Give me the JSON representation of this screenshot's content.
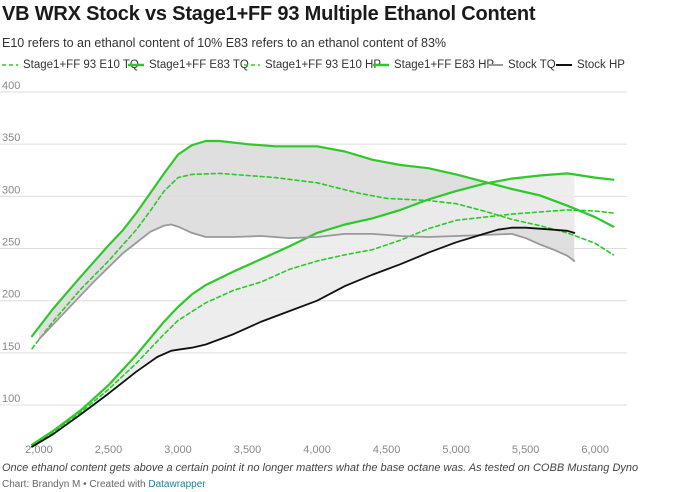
{
  "header": {
    "title": "VB WRX Stock vs Stage1+FF 93 Multiple Ethanol Content",
    "subtitle": "E10 refers to an ethanol content of 10% E83 refers to an ethanol content of 83%"
  },
  "footer": {
    "note": "Once ethanol content gets above a certain point it no longer matters what the base octane was. As tested on COBB Mustang Dyno",
    "credit_prefix": "Chart: Brandyn M • Created with ",
    "credit_link": "Datawrapper"
  },
  "colors": {
    "stage1": "#2ec82a",
    "stock_tq": "#999999",
    "stock_hp": "#111111",
    "band_tq": "#dcdcdc",
    "band_hp": "#ebebeb",
    "grid": "#dddddd",
    "tick": "#888888"
  },
  "chart_data": {
    "type": "line",
    "title": "VB WRX Stock vs Stage1+FF 93 Multiple Ethanol Content",
    "xlim": [
      1950,
      6200
    ],
    "ylim": [
      55,
      400
    ],
    "x_ticks": [
      2000,
      2500,
      3000,
      3500,
      4000,
      4500,
      5000,
      5500,
      6000
    ],
    "x_tick_labels": [
      "2,000",
      "2,500",
      "3,000",
      "3,500",
      "4,000",
      "4,500",
      "5,000",
      "5,500",
      "6,000"
    ],
    "y_ticks": [
      100,
      150,
      200,
      250,
      300,
      350,
      400
    ],
    "y_tick_labels": [
      "100",
      "150",
      "200",
      "250",
      "300",
      "350",
      "400"
    ],
    "grid": true,
    "legend": "top",
    "series": [
      {
        "name": "Stage1+FF 93 E10 TQ",
        "style": "dashed",
        "color": "#2ec82a",
        "x": [
          1950,
          2100,
          2300,
          2500,
          2600,
          2700,
          2800,
          2900,
          3000,
          3100,
          3300,
          3500,
          3700,
          4000,
          4300,
          4500,
          4800,
          5000,
          5200,
          5400,
          5600,
          5800,
          6000,
          6130
        ],
        "y": [
          154,
          180,
          211,
          238,
          253,
          268,
          286,
          305,
          318,
          321,
          322,
          320,
          318,
          313,
          303,
          298,
          296,
          293,
          286,
          278,
          272,
          265,
          255,
          244
        ]
      },
      {
        "name": "Stage1+FF E83 TQ",
        "style": "solid",
        "color": "#2ec82a",
        "x": [
          1950,
          2100,
          2300,
          2500,
          2600,
          2700,
          2800,
          2900,
          3000,
          3100,
          3200,
          3300,
          3500,
          3700,
          4000,
          4200,
          4400,
          4600,
          4800,
          5000,
          5200,
          5400,
          5600,
          5800,
          6000,
          6130
        ],
        "y": [
          166,
          192,
          223,
          253,
          267,
          284,
          303,
          322,
          340,
          349,
          353,
          353,
          350,
          348,
          348,
          343,
          335,
          330,
          327,
          321,
          314,
          307,
          301,
          291,
          280,
          271
        ]
      },
      {
        "name": "Stage1+FF 93 E10 HP",
        "style": "dashed",
        "color": "#2ec82a",
        "x": [
          1950,
          2100,
          2300,
          2500,
          2700,
          2900,
          3000,
          3200,
          3400,
          3600,
          3800,
          4000,
          4200,
          4400,
          4600,
          4800,
          5000,
          5200,
          5400,
          5600,
          5800,
          6000,
          6130
        ],
        "y": [
          61,
          74,
          93,
          115,
          140,
          168,
          181,
          198,
          210,
          218,
          230,
          238,
          244,
          249,
          258,
          269,
          277,
          280,
          283,
          285,
          287,
          286,
          284
        ]
      },
      {
        "name": "Stage1+FF E83 HP",
        "style": "solid",
        "color": "#2ec82a",
        "x": [
          1950,
          2100,
          2300,
          2500,
          2700,
          2900,
          3000,
          3100,
          3200,
          3400,
          3600,
          3800,
          4000,
          4200,
          4400,
          4600,
          4800,
          5000,
          5200,
          5400,
          5600,
          5800,
          6000,
          6130
        ],
        "y": [
          62,
          75,
          95,
          119,
          148,
          180,
          194,
          206,
          215,
          228,
          240,
          252,
          265,
          273,
          279,
          287,
          297,
          305,
          312,
          317,
          320,
          322,
          318,
          316
        ]
      },
      {
        "name": "Stock TQ",
        "style": "solid",
        "color": "#999999",
        "x": [
          2000,
          2200,
          2400,
          2600,
          2800,
          2900,
          2950,
          3000,
          3100,
          3200,
          3400,
          3600,
          3800,
          4000,
          4200,
          4400,
          4600,
          4800,
          5000,
          5200,
          5400,
          5500,
          5600,
          5700,
          5800,
          5850
        ],
        "y": [
          163,
          191,
          219,
          245,
          266,
          272,
          273,
          271,
          265,
          261,
          261,
          262,
          260,
          261,
          264,
          264,
          262,
          261,
          262,
          263,
          264,
          260,
          254,
          249,
          243,
          238
        ]
      },
      {
        "name": "Stock HP",
        "style": "solid",
        "color": "#111111",
        "x": [
          1950,
          2100,
          2300,
          2500,
          2700,
          2850,
          2950,
          3000,
          3100,
          3200,
          3400,
          3600,
          3800,
          4000,
          4200,
          4400,
          4600,
          4800,
          5000,
          5200,
          5300,
          5400,
          5500,
          5600,
          5700,
          5800,
          5850
        ],
        "y": [
          60,
          72,
          91,
          111,
          132,
          146,
          152,
          153,
          155,
          158,
          168,
          180,
          190,
          200,
          214,
          225,
          235,
          246,
          256,
          264,
          268,
          270,
          270,
          269,
          268,
          267,
          265
        ]
      }
    ],
    "bands": [
      {
        "between": [
          "Stock TQ",
          "Stage1+FF E83 TQ"
        ],
        "color": "#dcdcdc"
      },
      {
        "between": [
          "Stock HP",
          "Stage1+FF E83 HP"
        ],
        "color": "#ebebeb"
      }
    ]
  }
}
